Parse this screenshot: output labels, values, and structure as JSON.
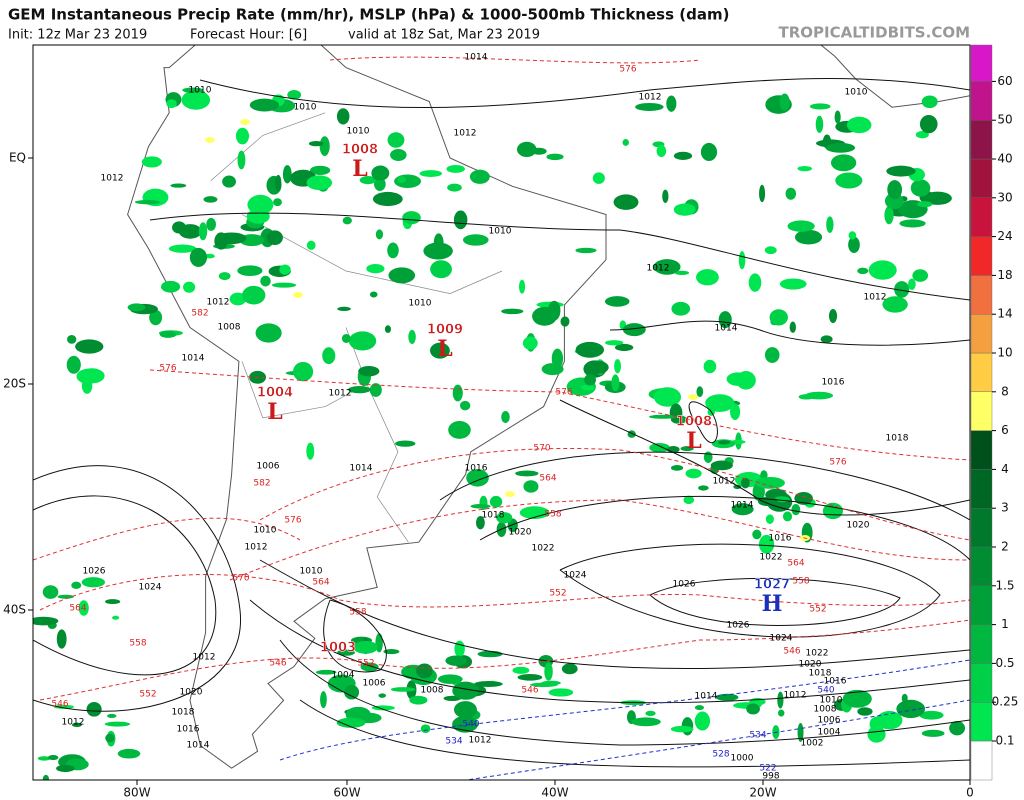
{
  "header": {
    "title": "GEM Instantaneous Precip Rate (mm/hr), MSLP (hPa) & 1000-500mb Thickness (dam)",
    "init": "Init: 12z Mar 23 2019",
    "forecast_hour": "Forecast Hour: [6]",
    "valid": "valid at 18z Sat, Mar 23 2019",
    "credit": "TROPICALTIDBITS.COM"
  },
  "axes": {
    "lon_labels": [
      "80W",
      "60W",
      "40W",
      "20W",
      "0"
    ],
    "lat_labels": [
      "EQ",
      "20S",
      "40S"
    ]
  },
  "colorbar": {
    "labels": [
      "0.1",
      "0.25",
      "0.5",
      "1",
      "1.5",
      "2",
      "3",
      "4",
      "6",
      "8",
      "10",
      "14",
      "18",
      "24",
      "30",
      "40",
      "50",
      "60"
    ],
    "colors": [
      "#ffffff",
      "#00e650",
      "#00d048",
      "#00b840",
      "#00a038",
      "#008c30",
      "#007a2a",
      "#006624",
      "#00501c",
      "#ffff66",
      "#ffcc44",
      "#f4a040",
      "#f07040",
      "#f02828",
      "#c8143c",
      "#a0143c",
      "#8c1448",
      "#c0148c",
      "#d818c8"
    ]
  },
  "pressure_centers": [
    {
      "value": "1008",
      "symbol": "L"
    },
    {
      "value": "1009",
      "symbol": "L"
    },
    {
      "value": "1004",
      "symbol": "L"
    },
    {
      "value": "1008",
      "symbol": "L"
    },
    {
      "value": "1027",
      "symbol": "H"
    },
    {
      "value": "1003"
    }
  ],
  "isobar_labels": [
    "1014",
    "1012",
    "1010",
    "1010",
    "1010",
    "1012",
    "1012",
    "1010",
    "1012",
    "1012",
    "1010",
    "1014",
    "1012",
    "1008",
    "1014",
    "1012",
    "1016",
    "1018",
    "1014",
    "1006",
    "1010",
    "1012",
    "1016",
    "1018",
    "1020",
    "1022",
    "1024",
    "1026",
    "1026",
    "1026",
    "1024",
    "1012",
    "1014",
    "1016",
    "1020",
    "1022",
    "1024",
    "1022",
    "1020",
    "1018",
    "1016",
    "1014",
    "1012",
    "1010",
    "1008",
    "1006",
    "1004",
    "1002",
    "1000",
    "998",
    "1010",
    "1012",
    "1020",
    "1018",
    "1016",
    "1014",
    "1004",
    "1006",
    "1008",
    "1012",
    "1012",
    "1010"
  ],
  "thickness_labels": [
    "576",
    "576",
    "582",
    "576",
    "570",
    "564",
    "558",
    "582",
    "576",
    "570",
    "564",
    "564",
    "558",
    "552",
    "552",
    "558",
    "564",
    "576",
    "558",
    "552",
    "546",
    "552",
    "546",
    "546",
    "546"
  ],
  "cold_thickness_labels": [
    "540",
    "534",
    "540",
    "534",
    "528",
    "522"
  ]
}
